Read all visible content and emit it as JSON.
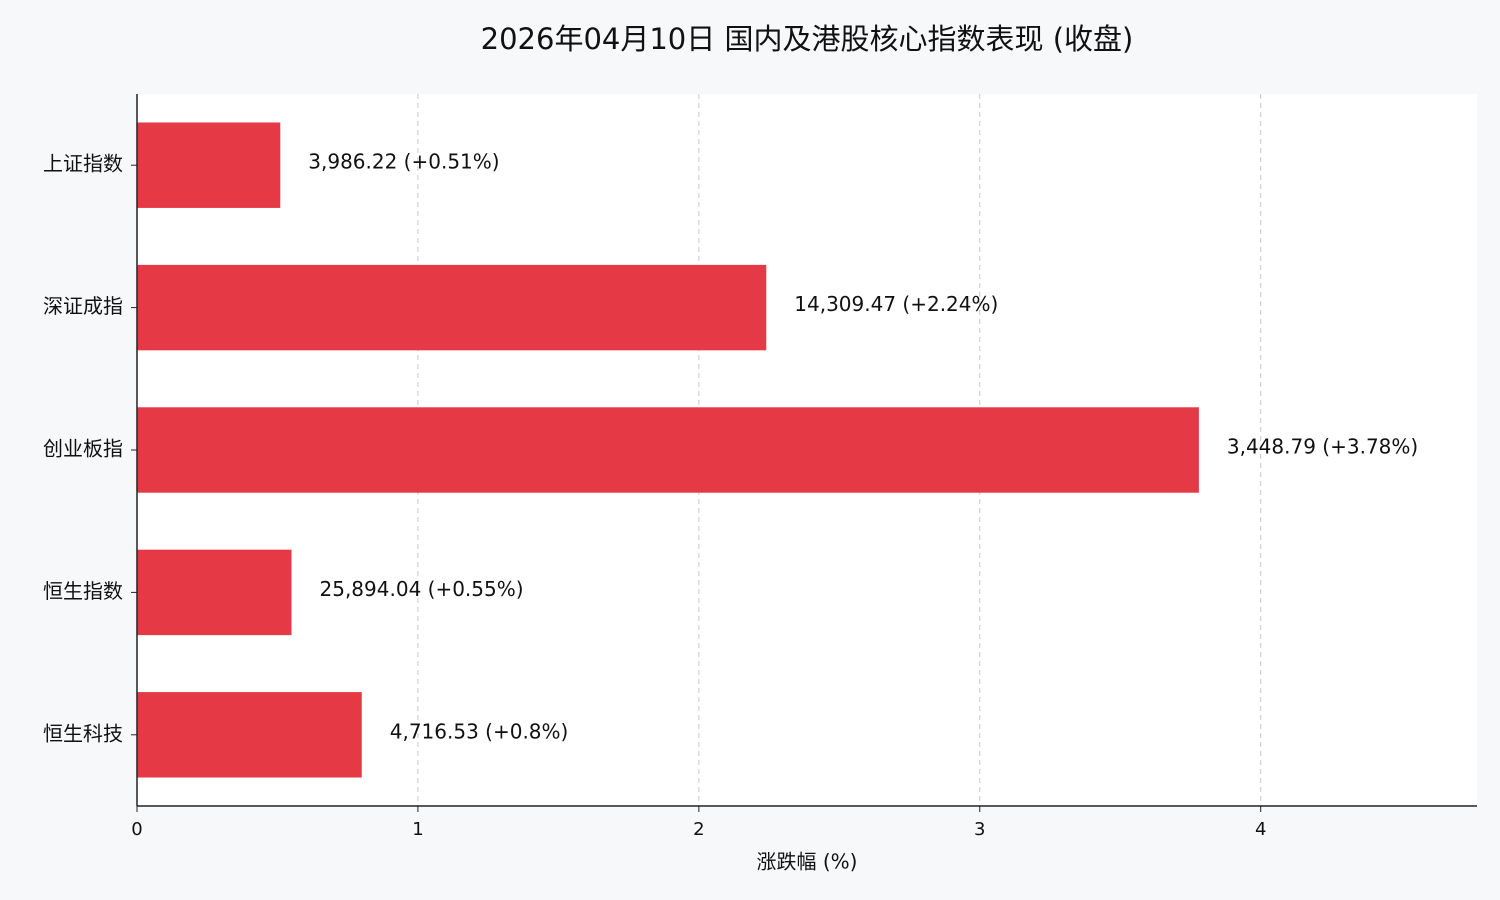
{
  "chart_data": {
    "type": "barh",
    "title": "2026年04月10日 国内及港股核心指数表现 (收盘)",
    "x_label": "涨跌幅 (%)",
    "categories": [
      "上证指数",
      "深证成指",
      "创业板指",
      "恒生指数",
      "恒生科技"
    ],
    "values": [
      0.51,
      2.24,
      3.78,
      0.55,
      0.8
    ],
    "value_labels": [
      "3,986.22 (+0.51%)",
      "14,309.47 (+2.24%)",
      "3,448.79 (+3.78%)",
      "25,894.04 (+0.55%)",
      "4,716.53 (+0.8%)"
    ],
    "color": "#e63946",
    "xlim": [
      0,
      4.77
    ],
    "xticks": [
      0,
      1,
      2,
      3,
      4
    ],
    "grid": true
  }
}
